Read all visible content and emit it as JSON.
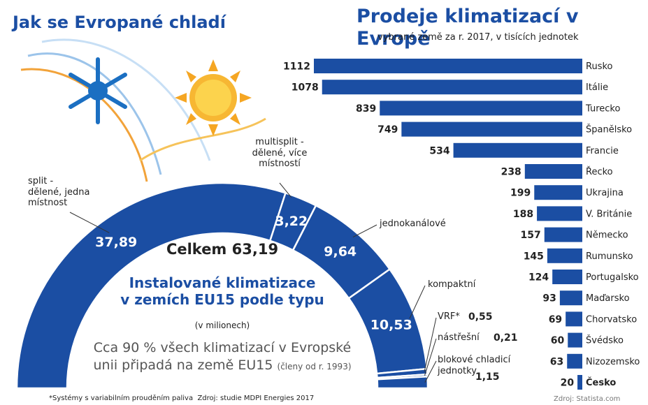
{
  "chart_data": [
    {
      "type": "semi-donut",
      "title": "Jak se Evropané chladí",
      "subtitle": "Instalované klimatizace\nv zemích EU15 podle typu",
      "unit_note": "(v milionech)",
      "total_label": "Celkem 63,19",
      "note": "Cca 90 % všech klimatizací v Evropské\nunii připadá na země EU15",
      "note_small": "(členy od r. 1993)",
      "categories": [
        "split -\ndělené, jedna\nmístnost",
        "multisplit -\ndělené, více\nmístností",
        "jednokanálové",
        "kompaktní",
        "VRF*",
        "nástřešní",
        "blokové chladicí\njednotky"
      ],
      "values": [
        37.89,
        3.22,
        9.64,
        10.53,
        0.55,
        0.21,
        1.15
      ],
      "value_labels": [
        "37,89",
        "3,22",
        "9,64",
        "10,53",
        "0,55",
        "0,21",
        "1,15"
      ],
      "color": "#1b4ea3"
    },
    {
      "type": "bar",
      "title": "Prodeje klimatizací v Evropě",
      "subtitle": "vybrané země za r. 2017, v tisících jednotek",
      "categories": [
        "Rusko",
        "Itálie",
        "Turecko",
        "Španělsko",
        "Francie",
        "Řecko",
        "Ukrajina",
        "V. Británie",
        "Německo",
        "Rumunsko",
        "Portugalsko",
        "Maďarsko",
        "Chorvatsko",
        "Švédsko",
        "Nizozemsko",
        "Česko"
      ],
      "values": [
        1112,
        1078,
        839,
        749,
        534,
        238,
        199,
        188,
        157,
        145,
        124,
        93,
        69,
        60,
        63,
        20
      ],
      "color": "#1b4ea3",
      "source": "Zdroj: Statista.com"
    }
  ],
  "footnote": "*Systémy s variabilním prouděním paliva  Zdroj: studie MDPI Energies 2017"
}
